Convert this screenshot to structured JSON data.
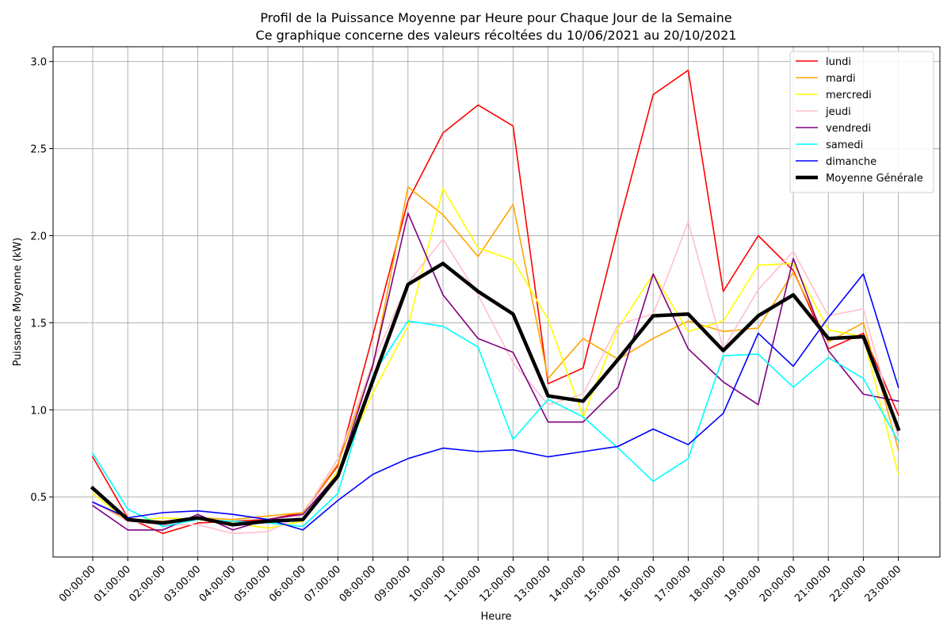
{
  "chart_data": {
    "type": "line",
    "title": "Profil de la Puissance Moyenne par Heure pour Chaque Jour de la Semaine",
    "subtitle": "Ce graphique concerne des valeurs récoltées du 10/06/2021 au 20/10/2021",
    "xlabel": "Heure",
    "ylabel": "Puissance Moyenne (kW)",
    "ylim": [
      0.155,
      3.085
    ],
    "yticks": [
      "0.5",
      "1.0",
      "1.5",
      "2.0",
      "2.5",
      "3.0"
    ],
    "grid": true,
    "legend_position": "top-right",
    "categories": [
      "00:00:00",
      "01:00:00",
      "02:00:00",
      "03:00:00",
      "04:00:00",
      "05:00:00",
      "06:00:00",
      "07:00:00",
      "08:00:00",
      "09:00:00",
      "10:00:00",
      "11:00:00",
      "12:00:00",
      "13:00:00",
      "14:00:00",
      "15:00:00",
      "16:00:00",
      "17:00:00",
      "18:00:00",
      "19:00:00",
      "20:00:00",
      "21:00:00",
      "22:00:00",
      "23:00:00"
    ],
    "series": [
      {
        "name": "lundi",
        "color": "#ff0000",
        "values": [
          0.73,
          0.38,
          0.29,
          0.35,
          0.36,
          0.37,
          0.41,
          0.68,
          1.43,
          2.2,
          2.59,
          2.75,
          2.63,
          1.15,
          1.24,
          2.05,
          2.81,
          2.95,
          1.68,
          2.0,
          1.8,
          1.35,
          1.44,
          0.97
        ]
      },
      {
        "name": "mardi",
        "color": "#ffa500",
        "values": [
          0.47,
          0.37,
          0.36,
          0.38,
          0.37,
          0.39,
          0.41,
          0.69,
          1.25,
          2.28,
          2.12,
          1.88,
          2.18,
          1.18,
          1.41,
          1.29,
          1.41,
          1.51,
          1.45,
          1.47,
          1.79,
          1.39,
          1.5,
          0.77
        ]
      },
      {
        "name": "mercredi",
        "color": "#ffff00",
        "values": [
          0.52,
          0.36,
          0.38,
          0.37,
          0.35,
          0.32,
          0.36,
          0.65,
          1.1,
          1.48,
          2.27,
          1.93,
          1.86,
          1.52,
          0.96,
          1.47,
          1.78,
          1.45,
          1.51,
          1.83,
          1.84,
          1.46,
          1.42,
          0.63
        ]
      },
      {
        "name": "jeudi",
        "color": "#ffc0cb",
        "values": [
          0.47,
          0.36,
          0.34,
          0.34,
          0.29,
          0.3,
          0.4,
          0.72,
          1.27,
          1.73,
          1.98,
          1.66,
          1.27,
          1.03,
          1.09,
          1.49,
          1.55,
          2.08,
          1.35,
          1.69,
          1.91,
          1.54,
          1.58,
          0.84
        ]
      },
      {
        "name": "vendredi",
        "color": "#800080",
        "values": [
          0.45,
          0.31,
          0.31,
          0.4,
          0.31,
          0.37,
          0.4,
          0.63,
          1.26,
          2.13,
          1.66,
          1.41,
          1.33,
          0.93,
          0.93,
          1.13,
          1.78,
          1.35,
          1.16,
          1.03,
          1.87,
          1.34,
          1.09,
          1.05
        ]
      },
      {
        "name": "samedi",
        "color": "#00ffff",
        "values": [
          0.75,
          0.43,
          0.33,
          0.37,
          0.36,
          0.35,
          0.33,
          0.52,
          1.2,
          1.51,
          1.48,
          1.36,
          0.83,
          1.06,
          0.96,
          0.78,
          0.59,
          0.72,
          1.31,
          1.32,
          1.13,
          1.3,
          1.18,
          0.82
        ]
      },
      {
        "name": "dimanche",
        "color": "#0000ff",
        "values": [
          0.47,
          0.38,
          0.41,
          0.42,
          0.4,
          0.37,
          0.31,
          0.48,
          0.63,
          0.72,
          0.78,
          0.76,
          0.77,
          0.73,
          0.76,
          0.79,
          0.89,
          0.8,
          0.98,
          1.44,
          1.25,
          1.53,
          1.78,
          1.13
        ]
      },
      {
        "name": "Moyenne Générale",
        "color": "#000000",
        "bold": true,
        "values": [
          0.55,
          0.37,
          0.35,
          0.38,
          0.34,
          0.36,
          0.37,
          0.62,
          1.17,
          1.72,
          1.84,
          1.68,
          1.55,
          1.08,
          1.05,
          1.29,
          1.54,
          1.55,
          1.34,
          1.54,
          1.66,
          1.41,
          1.42,
          0.89
        ]
      }
    ]
  }
}
